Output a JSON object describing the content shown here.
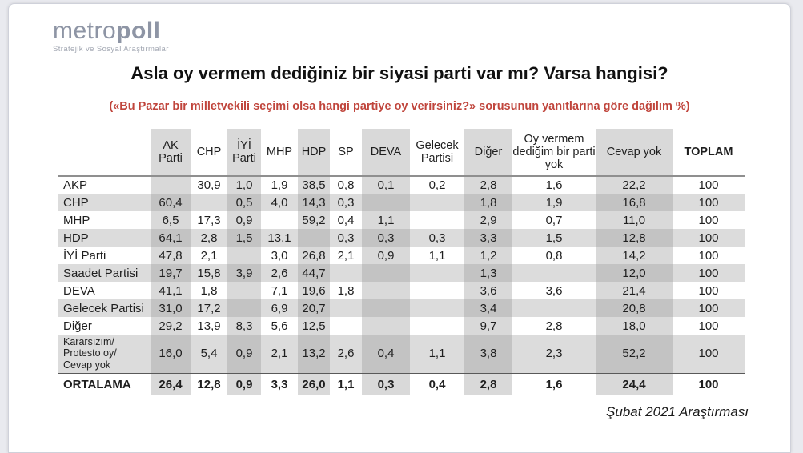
{
  "logo": {
    "brand_light": "metro",
    "brand_bold": "poll",
    "tagline": "Stratejik ve Sosyal Araştırmalar"
  },
  "title": "Asla oy vermem dediğiniz bir siyasi parti var mı? Varsa hangisi?",
  "subtitle": "(«Bu Pazar bir milletvekili seçimi olsa hangi partiye oy verirsiniz?» sorusunun yanıtlarına göre dağılım %)",
  "footer": "Şubat 2021 Araştırması",
  "colors": {
    "subtitle_red": "#c0453c",
    "logo_gray": "#8e95a5",
    "column_shade": "#d9d9d9",
    "row_stripe": "#dcdcdc",
    "stripe_column_overlap": "#c3c3c3",
    "page_background": "#e9eaef"
  },
  "table": {
    "columns": [
      {
        "label": "AK Parti",
        "shaded": true,
        "bold": false
      },
      {
        "label": "CHP",
        "shaded": false,
        "bold": false
      },
      {
        "label": "İYİ Parti",
        "shaded": true,
        "bold": false
      },
      {
        "label": "MHP",
        "shaded": false,
        "bold": false
      },
      {
        "label": "HDP",
        "shaded": true,
        "bold": false
      },
      {
        "label": "SP",
        "shaded": false,
        "bold": false
      },
      {
        "label": "DEVA",
        "shaded": true,
        "bold": false
      },
      {
        "label": "Gelecek Partisi",
        "shaded": false,
        "bold": false
      },
      {
        "label": "Diğer",
        "shaded": true,
        "bold": false
      },
      {
        "label": "Oy vermem dediğim bir parti yok",
        "shaded": false,
        "bold": false
      },
      {
        "label": "Cevap yok",
        "shaded": true,
        "bold": false
      },
      {
        "label": "TOPLAM",
        "shaded": false,
        "bold": true
      }
    ],
    "rows": [
      {
        "label": "AKP",
        "striped": false,
        "bold": false,
        "values": [
          "",
          "30,9",
          "1,0",
          "1,9",
          "38,5",
          "0,8",
          "0,1",
          "0,2",
          "2,8",
          "1,6",
          "22,2",
          "100"
        ]
      },
      {
        "label": "CHP",
        "striped": true,
        "bold": false,
        "values": [
          "60,4",
          "",
          "0,5",
          "4,0",
          "14,3",
          "0,3",
          "",
          "",
          "1,8",
          "1,9",
          "16,8",
          "100"
        ]
      },
      {
        "label": "MHP",
        "striped": false,
        "bold": false,
        "values": [
          "6,5",
          "17,3",
          "0,9",
          "",
          "59,2",
          "0,4",
          "1,1",
          "",
          "2,9",
          "0,7",
          "11,0",
          "100"
        ]
      },
      {
        "label": "HDP",
        "striped": true,
        "bold": false,
        "values": [
          "64,1",
          "2,8",
          "1,5",
          "13,1",
          "",
          "0,3",
          "0,3",
          "0,3",
          "3,3",
          "1,5",
          "12,8",
          "100"
        ]
      },
      {
        "label": "İYİ Parti",
        "striped": false,
        "bold": false,
        "values": [
          "47,8",
          "2,1",
          "",
          "3,0",
          "26,8",
          "2,1",
          "0,9",
          "1,1",
          "1,2",
          "0,8",
          "14,2",
          "100"
        ]
      },
      {
        "label": "Saadet Partisi",
        "striped": true,
        "bold": false,
        "values": [
          "19,7",
          "15,8",
          "3,9",
          "2,6",
          "44,7",
          "",
          "",
          "",
          "1,3",
          "",
          "12,0",
          "100"
        ]
      },
      {
        "label": "DEVA",
        "striped": false,
        "bold": false,
        "values": [
          "41,1",
          "1,8",
          "",
          "7,1",
          "19,6",
          "1,8",
          "",
          "",
          "3,6",
          "3,6",
          "21,4",
          "100"
        ]
      },
      {
        "label": "Gelecek Partisi",
        "striped": true,
        "bold": false,
        "values": [
          "31,0",
          "17,2",
          "",
          "6,9",
          "20,7",
          "",
          "",
          "",
          "3,4",
          "",
          "20,8",
          "100"
        ]
      },
      {
        "label": "Diğer",
        "striped": false,
        "bold": false,
        "values": [
          "29,2",
          "13,9",
          "8,3",
          "5,6",
          "12,5",
          "",
          "",
          "",
          "9,7",
          "2,8",
          "18,0",
          "100"
        ]
      },
      {
        "label": "Kararsızım/\nProtesto oy/\nCevap yok",
        "striped": true,
        "bold": false,
        "values": [
          "16,0",
          "5,4",
          "0,9",
          "2,1",
          "13,2",
          "2,6",
          "0,4",
          "1,1",
          "3,8",
          "2,3",
          "52,2",
          "100"
        ]
      },
      {
        "label": "ORTALAMA",
        "striped": false,
        "bold": true,
        "values": [
          "26,4",
          "12,8",
          "0,9",
          "3,3",
          "26,0",
          "1,1",
          "0,3",
          "0,4",
          "2,8",
          "1,6",
          "24,4",
          "100"
        ]
      }
    ]
  },
  "chart_data": {
    "type": "table",
    "title": "Asla oy vermem dediğiniz bir siyasi parti var mı? Varsa hangisi?",
    "subtitle": "(«Bu Pazar bir milletvekili seçimi olsa hangi partiye oy verirsiniz?» sorusunun yanıtlarına göre dağılım %)",
    "unit": "%",
    "source_note": "Şubat 2021 Araştırması",
    "columns": [
      "AK Parti",
      "CHP",
      "İYİ Parti",
      "MHP",
      "HDP",
      "SP",
      "DEVA",
      "Gelecek Partisi",
      "Diğer",
      "Oy vermem dediğim bir parti yok",
      "Cevap yok",
      "TOPLAM"
    ],
    "rows": [
      {
        "name": "AKP",
        "values": [
          null,
          30.9,
          1.0,
          1.9,
          38.5,
          0.8,
          0.1,
          0.2,
          2.8,
          1.6,
          22.2,
          100
        ]
      },
      {
        "name": "CHP",
        "values": [
          60.4,
          null,
          0.5,
          4.0,
          14.3,
          0.3,
          null,
          null,
          1.8,
          1.9,
          16.8,
          100
        ]
      },
      {
        "name": "MHP",
        "values": [
          6.5,
          17.3,
          0.9,
          null,
          59.2,
          0.4,
          1.1,
          null,
          2.9,
          0.7,
          11.0,
          100
        ]
      },
      {
        "name": "HDP",
        "values": [
          64.1,
          2.8,
          1.5,
          13.1,
          null,
          0.3,
          0.3,
          0.3,
          3.3,
          1.5,
          12.8,
          100
        ]
      },
      {
        "name": "İYİ Parti",
        "values": [
          47.8,
          2.1,
          null,
          3.0,
          26.8,
          2.1,
          0.9,
          1.1,
          1.2,
          0.8,
          14.2,
          100
        ]
      },
      {
        "name": "Saadet Partisi",
        "values": [
          19.7,
          15.8,
          3.9,
          2.6,
          44.7,
          null,
          null,
          null,
          1.3,
          null,
          12.0,
          100
        ]
      },
      {
        "name": "DEVA",
        "values": [
          41.1,
          1.8,
          null,
          7.1,
          19.6,
          1.8,
          null,
          null,
          3.6,
          3.6,
          21.4,
          100
        ]
      },
      {
        "name": "Gelecek Partisi",
        "values": [
          31.0,
          17.2,
          null,
          6.9,
          20.7,
          null,
          null,
          null,
          3.4,
          null,
          20.8,
          100
        ]
      },
      {
        "name": "Diğer",
        "values": [
          29.2,
          13.9,
          8.3,
          5.6,
          12.5,
          null,
          null,
          null,
          9.7,
          2.8,
          18.0,
          100
        ]
      },
      {
        "name": "Kararsızım/Protesto oy/Cevap yok",
        "values": [
          16.0,
          5.4,
          0.9,
          2.1,
          13.2,
          2.6,
          0.4,
          1.1,
          3.8,
          2.3,
          52.2,
          100
        ]
      },
      {
        "name": "ORTALAMA",
        "values": [
          26.4,
          12.8,
          0.9,
          3.3,
          26.0,
          1.1,
          0.3,
          0.4,
          2.8,
          1.6,
          24.4,
          100
        ]
      }
    ]
  }
}
